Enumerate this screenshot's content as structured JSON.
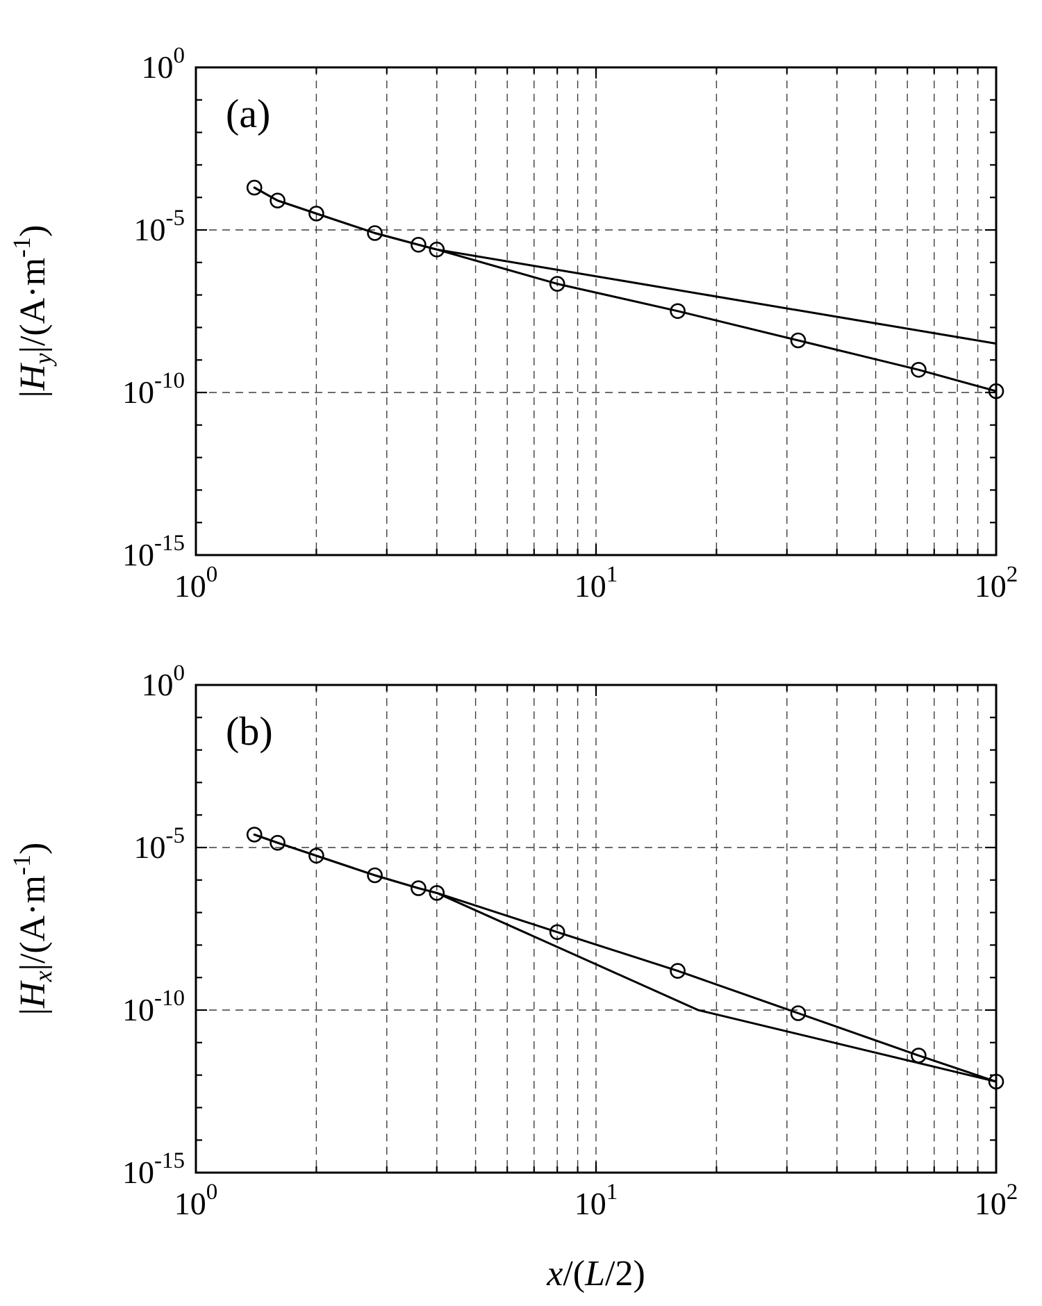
{
  "figure": {
    "background": "#ffffff",
    "line_color": "#000000",
    "grid_color": "#3c3c3c"
  },
  "xlabel": "x/(L/2)",
  "xlabel_segments": [
    {
      "text": "x",
      "italic": true
    },
    {
      "text": "/("
    },
    {
      "text": "L",
      "italic": true
    },
    {
      "text": "/2)"
    }
  ],
  "chart_data": [
    {
      "type": "line",
      "panel_label": "(a)",
      "xscale": "log",
      "yscale": "log",
      "xlim": [
        1,
        100
      ],
      "ylim": [
        1e-15,
        1.0
      ],
      "ylim_exp": [
        -15,
        0
      ],
      "x_tick_exponents": [
        0,
        1,
        2
      ],
      "y_tick_exponents": [
        0,
        -5,
        -10,
        -15
      ],
      "x_minor_grid": [
        2,
        3,
        4,
        5,
        6,
        7,
        8,
        9,
        10,
        20,
        30,
        40,
        50,
        60,
        70,
        80,
        90
      ],
      "y_grid_exponents": [
        -5,
        -10
      ],
      "ylabel": "|H_y|/(A·m^-1)",
      "ylabel_segments": [
        {
          "text": "|"
        },
        {
          "text": "H",
          "italic": true
        },
        {
          "text": "y",
          "italic": true,
          "script": "sub"
        },
        {
          "text": "|/(A·m"
        },
        {
          "text": "-1",
          "script": "sup"
        },
        {
          "text": ")"
        }
      ],
      "series": [
        {
          "name": "hy-exact",
          "marker": "circle",
          "x": [
            1.4,
            1.6,
            2.0,
            2.8,
            3.6,
            4.0,
            8.0,
            16,
            32,
            64,
            100
          ],
          "y": [
            0.0002,
            8e-05,
            3.2e-05,
            8e-06,
            3.5e-06,
            2.5e-06,
            2.2e-07,
            3.2e-08,
            4e-09,
            5e-10,
            1.1e-10
          ]
        },
        {
          "name": "hy-asymptotic",
          "marker": "none",
          "x": [
            1.4,
            1.6,
            2.0,
            2.8,
            3.6,
            4.0,
            100
          ],
          "y": [
            0.0002,
            8e-05,
            3.2e-05,
            8e-06,
            3.5e-06,
            2.5e-06,
            3.2e-09
          ]
        }
      ]
    },
    {
      "type": "line",
      "panel_label": "(b)",
      "xscale": "log",
      "yscale": "log",
      "xlim": [
        1,
        100
      ],
      "ylim": [
        1e-15,
        1.0
      ],
      "ylim_exp": [
        -15,
        0
      ],
      "x_tick_exponents": [
        0,
        1,
        2
      ],
      "y_tick_exponents": [
        0,
        -5,
        -10,
        -15
      ],
      "x_minor_grid": [
        2,
        3,
        4,
        5,
        6,
        7,
        8,
        9,
        10,
        20,
        30,
        40,
        50,
        60,
        70,
        80,
        90
      ],
      "y_grid_exponents": [
        -5,
        -10
      ],
      "ylabel": "|H_x|/(A·m^-1)",
      "ylabel_segments": [
        {
          "text": "|"
        },
        {
          "text": "H",
          "italic": true
        },
        {
          "text": "x",
          "italic": true,
          "script": "sub"
        },
        {
          "text": "|/(A·m"
        },
        {
          "text": "-1",
          "script": "sup"
        },
        {
          "text": ")"
        }
      ],
      "series": [
        {
          "name": "hx-exact",
          "marker": "circle",
          "x": [
            1.4,
            1.6,
            2.0,
            2.8,
            3.6,
            4.0,
            8.0,
            16,
            32,
            64,
            100
          ],
          "y": [
            2.5e-05,
            1.4e-05,
            5.6e-06,
            1.4e-06,
            5.6e-07,
            4e-07,
            2.5e-08,
            1.6e-09,
            8e-11,
            4e-12,
            6.3e-13
          ]
        },
        {
          "name": "hx-asymptotic",
          "marker": "none",
          "x": [
            1.4,
            1.6,
            2.0,
            2.8,
            3.6,
            4.0,
            18,
            100
          ],
          "y": [
            2.5e-05,
            1.4e-05,
            5.6e-06,
            1.4e-06,
            5.6e-07,
            4e-07,
            1e-10,
            6.3e-13
          ]
        }
      ]
    }
  ]
}
